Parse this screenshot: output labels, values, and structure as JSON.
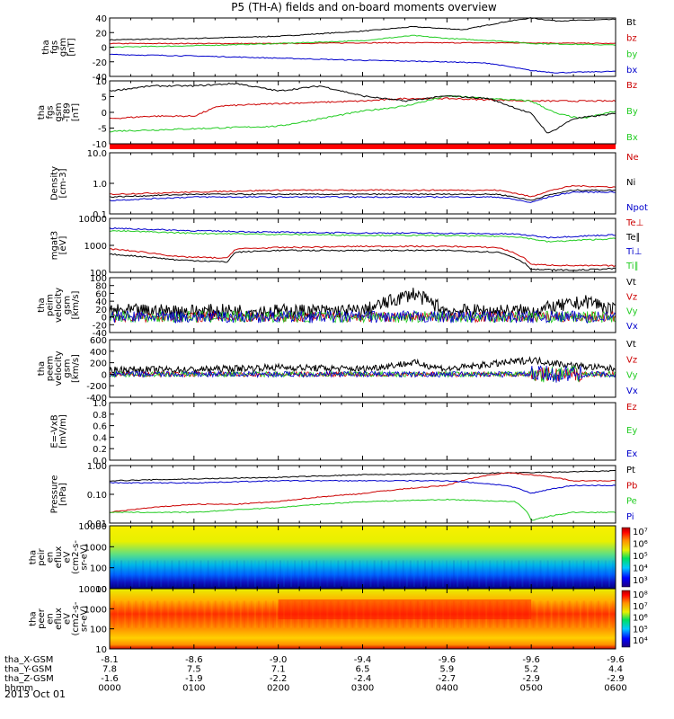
{
  "title": "P5 (TH-A) fields and on-board moments overview",
  "date": "2013 Oct 01",
  "colors": {
    "black": "#000000",
    "red": "#cc0000",
    "green": "#22cc22",
    "blue": "#0000cc"
  },
  "orbit": {
    "rows": [
      {
        "label": "tha_X-GSM",
        "values": [
          "-8.1",
          "-8.6",
          "-9.0",
          "-9.4",
          "-9.6",
          "-9.6",
          "-9.6"
        ]
      },
      {
        "label": "tha_Y-GSM",
        "values": [
          "7.8",
          "7.5",
          "7.1",
          "6.5",
          "5.9",
          "5.2",
          "4.4"
        ]
      },
      {
        "label": "tha_Z-GSM",
        "values": [
          "-1.6",
          "-1.9",
          "-2.2",
          "-2.4",
          "-2.7",
          "-2.9",
          "-2.9"
        ]
      },
      {
        "label": "hhmm",
        "values": [
          "0000",
          "0100",
          "0200",
          "0300",
          "0400",
          "0500",
          "0600"
        ]
      }
    ]
  },
  "panels": [
    {
      "ylabel": [
        "tha",
        "fgs",
        "gsm",
        "[nT]"
      ],
      "ticks": [
        "40",
        "20",
        "0",
        "-20",
        "-40"
      ],
      "legend": [
        {
          "text": "Bt",
          "color": "black"
        },
        {
          "text": "bz",
          "color": "red"
        },
        {
          "text": "by",
          "color": "green"
        },
        {
          "text": "bx",
          "color": "blue"
        }
      ]
    },
    {
      "ylabel": [
        "tha",
        "fgs",
        "gsm",
        "-T89",
        "[nT]"
      ],
      "ticks": [
        "10",
        "5",
        "0",
        "-5",
        "-10"
      ],
      "legend": [
        {
          "text": "Bz",
          "color": "red"
        },
        {
          "text": "By",
          "color": "green"
        },
        {
          "text": "Bx",
          "color": "green"
        }
      ]
    },
    {
      "ylabel": [
        "Density",
        "[cm-3]"
      ],
      "ticks": [
        "10.0",
        "1.0",
        "0.1"
      ],
      "legend": [
        {
          "text": "Ne",
          "color": "red"
        },
        {
          "text": "Ni",
          "color": "black"
        },
        {
          "text": "Npot",
          "color": "blue"
        }
      ]
    },
    {
      "ylabel": [
        "mgat3",
        "[eV]"
      ],
      "ticks": [
        "10000",
        "1000",
        "100"
      ],
      "legend": [
        {
          "text": "Te⊥",
          "color": "red"
        },
        {
          "text": "Te∥",
          "color": "black"
        },
        {
          "text": "Ti⊥",
          "color": "blue"
        },
        {
          "text": "Ti∥",
          "color": "green"
        }
      ]
    },
    {
      "ylabel": [
        "tha",
        "peim",
        "velocity",
        "gsm",
        "[km/s]"
      ],
      "ticks": [
        "100",
        "80",
        "60",
        "40",
        "20",
        "0",
        "-20",
        "-40"
      ],
      "legend": [
        {
          "text": "Vt",
          "color": "black"
        },
        {
          "text": "Vz",
          "color": "red"
        },
        {
          "text": "Vy",
          "color": "green"
        },
        {
          "text": "Vx",
          "color": "blue"
        }
      ]
    },
    {
      "ylabel": [
        "tha",
        "peem",
        "velocity",
        "gsm",
        "[km/s]"
      ],
      "ticks": [
        "600",
        "400",
        "200",
        "0",
        "-200",
        "-400"
      ],
      "legend": [
        {
          "text": "Vt",
          "color": "black"
        },
        {
          "text": "Vz",
          "color": "red"
        },
        {
          "text": "Vy",
          "color": "green"
        },
        {
          "text": "Vx",
          "color": "blue"
        }
      ]
    },
    {
      "ylabel": [
        "E=-VxB",
        "[mV/m]"
      ],
      "ticks": [
        "1.0",
        "0.8",
        "0.6",
        "0.4",
        "0.2",
        "0.0"
      ],
      "legend": [
        {
          "text": "Ez",
          "color": "red"
        },
        {
          "text": "Ey",
          "color": "green"
        },
        {
          "text": "Ex",
          "color": "blue"
        }
      ]
    },
    {
      "ylabel": [
        "Pressure",
        "[nPa]"
      ],
      "ticks": [
        "1.00",
        "0.10",
        "0.01"
      ],
      "legend": [
        {
          "text": "Pt",
          "color": "black"
        },
        {
          "text": "Pb",
          "color": "red"
        },
        {
          "text": "Pe",
          "color": "green"
        },
        {
          "text": "Pi",
          "color": "blue"
        }
      ]
    },
    {
      "ylabel": [
        "tha",
        "peir",
        "en",
        "eflux",
        "eV",
        "(cm2-s-",
        "sr-eV)"
      ],
      "ticks": [
        "10000",
        "1000",
        "100",
        "10"
      ],
      "colorbar": [
        "10⁷",
        "10⁶",
        "10⁵",
        "10⁴",
        "10³"
      ]
    },
    {
      "ylabel": [
        "tha",
        "peer",
        "en",
        "eflux",
        "eV",
        "(cm2-s-",
        "sr-eV)"
      ],
      "ticks": [
        "10000",
        "1000",
        "100",
        "10"
      ],
      "colorbar": [
        "10⁸",
        "10⁷",
        "10⁶",
        "10⁵",
        "10⁴"
      ]
    }
  ],
  "chart_data": {
    "type": "line",
    "title": "P5 (TH-A) fields and on-board moments overview",
    "x_ticks": [
      "0000",
      "0100",
      "0200",
      "0300",
      "0400",
      "0500",
      "0600"
    ],
    "x_range_hours": [
      0,
      6
    ],
    "series": [
      {
        "panel": 0,
        "name": "Bt",
        "x": [
          0,
          1,
          2,
          3,
          3.6,
          4.2,
          4.7,
          5,
          5.3,
          6
        ],
        "values": [
          10,
          12,
          15,
          22,
          28,
          24,
          35,
          40,
          36,
          38
        ]
      },
      {
        "panel": 0,
        "name": "bz",
        "x": [
          0,
          1,
          2,
          3,
          4,
          5,
          6
        ],
        "values": [
          5,
          5,
          5,
          6,
          6,
          6,
          5
        ]
      },
      {
        "panel": 0,
        "name": "by",
        "x": [
          0,
          1,
          2,
          3,
          3.6,
          4,
          4.7,
          5,
          6
        ],
        "values": [
          0,
          2,
          5,
          9,
          16,
          12,
          8,
          5,
          3
        ]
      },
      {
        "panel": 0,
        "name": "bx",
        "x": [
          0,
          1,
          2,
          3,
          4,
          4.5,
          5,
          5.3,
          6
        ],
        "values": [
          -10,
          -12,
          -15,
          -18,
          -20,
          -22,
          -32,
          -35,
          -33
        ]
      },
      {
        "panel": 1,
        "name": "Bz",
        "x": [
          0,
          0.5,
          1,
          1.3,
          2,
          3,
          3.5,
          4,
          5,
          5.5,
          6
        ],
        "values": [
          -5,
          -4,
          -4,
          0,
          1,
          2,
          3,
          3,
          2,
          2,
          2
        ]
      },
      {
        "panel": 1,
        "name": "By",
        "x": [
          0,
          1,
          2,
          2.5,
          3,
          3.5,
          4,
          5,
          5.3,
          5.6,
          6
        ],
        "values": [
          -10,
          -9,
          -8,
          -5,
          -2,
          0,
          4,
          2,
          -3,
          -5,
          -2
        ]
      },
      {
        "panel": 1,
        "name": "Bt",
        "x": [
          0,
          0.5,
          1,
          1.5,
          2,
          2.5,
          3,
          3.5,
          4,
          4.5,
          5,
          5.2,
          5.5,
          6
        ],
        "values": [
          6,
          8,
          8,
          9,
          6,
          8,
          4,
          2,
          4,
          3,
          -3,
          -11,
          -5,
          -3
        ]
      },
      {
        "panel": 2,
        "name": "Ne",
        "x": [
          0,
          1,
          2,
          3,
          4,
          4.6,
          5,
          5.5,
          6
        ],
        "values": [
          0.5,
          0.6,
          0.7,
          0.7,
          0.7,
          0.7,
          0.4,
          1.0,
          0.9
        ]
      },
      {
        "panel": 2,
        "name": "Ni",
        "x": [
          0,
          1,
          2,
          3,
          4,
          4.6,
          5,
          5.5,
          6
        ],
        "values": [
          0.4,
          0.5,
          0.5,
          0.5,
          0.5,
          0.5,
          0.3,
          0.7,
          0.7
        ]
      },
      {
        "panel": 2,
        "name": "Npot",
        "x": [
          0,
          1,
          2,
          3,
          4,
          4.6,
          5,
          5.5,
          6
        ],
        "values": [
          0.3,
          0.4,
          0.4,
          0.4,
          0.4,
          0.4,
          0.25,
          0.6,
          0.6
        ]
      },
      {
        "panel": 3,
        "name": "Ti⊥",
        "x": [
          0,
          1,
          2,
          3,
          4,
          4.8,
          5.2,
          6
        ],
        "values": [
          5000,
          4000,
          3500,
          3300,
          3200,
          3000,
          2200,
          2800
        ]
      },
      {
        "panel": 3,
        "name": "Ti∥",
        "x": [
          0,
          1,
          2,
          3,
          4,
          4.8,
          5.2,
          6
        ],
        "values": [
          4000,
          3200,
          2900,
          2700,
          2600,
          2400,
          1500,
          2000
        ]
      },
      {
        "panel": 3,
        "name": "Te⊥",
        "x": [
          0,
          0.8,
          1.4,
          1.5,
          2,
          3,
          4,
          4.6,
          5,
          5.5,
          6
        ],
        "values": [
          800,
          400,
          350,
          800,
          900,
          1000,
          1000,
          900,
          200,
          180,
          180
        ]
      },
      {
        "panel": 3,
        "name": "Te∥",
        "x": [
          0,
          0.8,
          1.4,
          1.5,
          2,
          3,
          4,
          4.6,
          5,
          5.5,
          6
        ],
        "values": [
          500,
          300,
          250,
          600,
          700,
          700,
          700,
          600,
          130,
          120,
          140
        ]
      },
      {
        "panel": 4,
        "name": "Vt",
        "x": [
          0,
          1,
          2,
          3,
          3.6,
          4,
          5,
          5.7,
          6
        ],
        "values": [
          15,
          15,
          15,
          15,
          60,
          15,
          15,
          40,
          15
        ]
      },
      {
        "panel": 5,
        "name": "Vt",
        "x": [
          0,
          1,
          2,
          3,
          3.6,
          4,
          5,
          5.5,
          6
        ],
        "values": [
          80,
          80,
          120,
          90,
          200,
          90,
          250,
          150,
          90
        ]
      },
      {
        "panel": 7,
        "name": "Pt",
        "x": [
          0,
          1,
          2,
          3,
          4,
          5,
          6
        ],
        "values": [
          0.3,
          0.35,
          0.4,
          0.5,
          0.55,
          0.6,
          0.7
        ]
      },
      {
        "panel": 7,
        "name": "Pb",
        "x": [
          0,
          0.5,
          1,
          1.5,
          2,
          3,
          4,
          4.7,
          5,
          5.5,
          6
        ],
        "values": [
          0.02,
          0.03,
          0.04,
          0.04,
          0.05,
          0.1,
          0.2,
          0.6,
          0.5,
          0.3,
          0.3
        ]
      },
      {
        "panel": 7,
        "name": "Pi",
        "x": [
          0,
          1,
          2,
          3,
          4,
          4.7,
          5,
          5.5,
          6
        ],
        "values": [
          0.25,
          0.25,
          0.3,
          0.3,
          0.3,
          0.2,
          0.1,
          0.2,
          0.2
        ]
      },
      {
        "panel": 7,
        "name": "Pe",
        "x": [
          0,
          1,
          2,
          3,
          4,
          4.8,
          5,
          5.5,
          6
        ],
        "values": [
          0.02,
          0.02,
          0.03,
          0.05,
          0.06,
          0.05,
          0.01,
          0.02,
          0.02
        ]
      }
    ]
  }
}
